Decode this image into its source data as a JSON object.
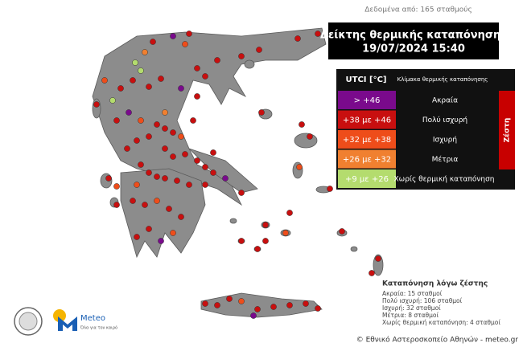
{
  "header": {
    "data_note": "Δεδομένα από: 165 σταθμούς",
    "title": "Δείκτης θερμικής καταπόνησης",
    "datetime": "19/07/2024 15:40"
  },
  "legend": {
    "col1": "UTCI [°C]",
    "col2": "Κλίμακα θερμικής καταπόνησης",
    "group": "Ζέστη",
    "group_color": "#c80000",
    "rows": [
      {
        "range": "> +46",
        "label": "Ακραία",
        "color": "#7a0a8c"
      },
      {
        "range": "+38 με +46",
        "label": "Πολύ ισχυρή",
        "color": "#c80f0f"
      },
      {
        "range": "+32 με +38",
        "label": "Ισχυρή",
        "color": "#ee4d1a"
      },
      {
        "range": "+26 με +32",
        "label": "Μέτρια",
        "color": "#f08030"
      },
      {
        "range": "+9 με +26",
        "label": "Χωρίς θερμική καταπόνηση",
        "color": "#b4dc6e"
      }
    ]
  },
  "summary": {
    "title": "Καταπόνηση λόγω ζέστης",
    "lines": [
      "Ακραία: 15 σταθμοί",
      "Πολύ ισχυρή: 106 σταθμοί",
      "Ισχυρή: 32 σταθμοί",
      "Μέτρια: 8 σταθμοί",
      "Χωρίς θερμική καταπόνηση: 4 σταθμοί"
    ]
  },
  "logo": {
    "name": "Meteo",
    "tagline": "Όλα για τον καιρό"
  },
  "footer": "© Εθνικό Αστεροσκοπείο Αθηνών - meteo.gr"
}
